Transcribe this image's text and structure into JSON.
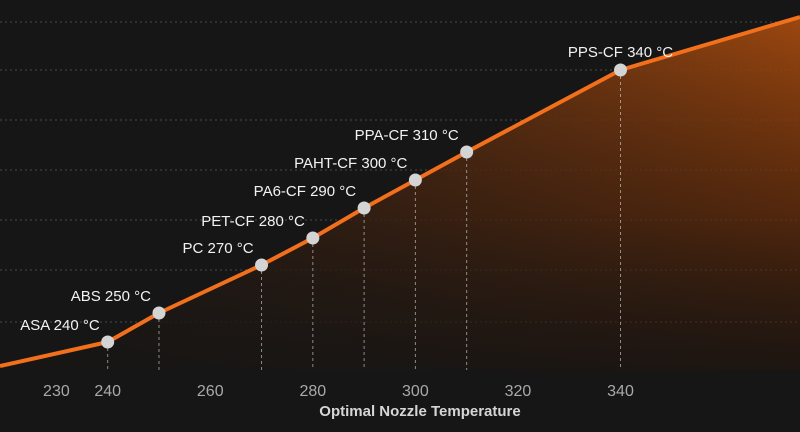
{
  "chart_data": {
    "type": "line",
    "xlabel": "Optimal Nozzle Temperature",
    "ylabel": "",
    "x_ticks": [
      230,
      240,
      250,
      260,
      270,
      280,
      290,
      300,
      310,
      320,
      330,
      340
    ],
    "tick_labels": [
      "230",
      "240",
      "",
      "260",
      "",
      "280",
      "",
      "300",
      "",
      "320",
      "",
      "340"
    ],
    "xlim": [
      219,
      375
    ],
    "series": [
      {
        "name": "",
        "points": [
          {
            "label": "ASA 240 °C",
            "x": 240
          },
          {
            "label": "ABS 250 °C",
            "x": 250
          },
          {
            "label": "PC 270 °C",
            "x": 270
          },
          {
            "label": "PET-CF 280 °C",
            "x": 280
          },
          {
            "label": "PA6-CF 290 °C",
            "x": 290
          },
          {
            "label": "PAHT-CF 300 °C",
            "x": 300
          },
          {
            "label": "PPA-CF 310 °C",
            "x": 310
          },
          {
            "label": "PPS-CF 340 °C",
            "x": 340
          }
        ]
      }
    ],
    "colors": {
      "background": "#161616",
      "line": "#f26f1c",
      "area": "#8a3c0c",
      "marker": "#d4d4d4",
      "grid": "#4a4a4a"
    },
    "grid": true,
    "legend": "none"
  }
}
